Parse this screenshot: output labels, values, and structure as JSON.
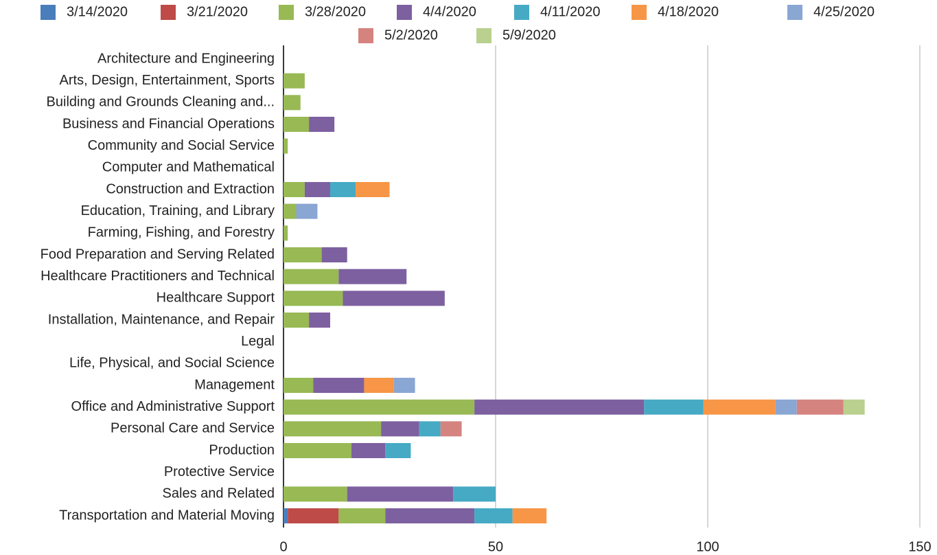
{
  "chart_data": {
    "type": "stacked_barh",
    "categories": [
      "Architecture and Engineering",
      "Arts, Design, Entertainment, Sports",
      "Building and Grounds Cleaning and...",
      "Business and Financial Operations",
      "Community and Social Service",
      "Computer and Mathematical",
      "Construction and Extraction",
      "Education, Training, and Library",
      "Farming, Fishing, and Forestry",
      "Food Preparation and Serving Related",
      "Healthcare Practitioners and Technical",
      "Healthcare Support",
      "Installation, Maintenance, and Repair",
      "Legal",
      "Life, Physical, and Social Science",
      "Management",
      "Office and Administrative Support",
      "Personal Care and Service",
      "Production",
      "Protective Service",
      "Sales and Related",
      "Transportation and Material Moving"
    ],
    "series": [
      {
        "name": "3/14/2020",
        "color": "#4a7ebb",
        "values": [
          0,
          0,
          0,
          0,
          0,
          0,
          0,
          0,
          0,
          0,
          0,
          0,
          0,
          0,
          0,
          0,
          0,
          0,
          0,
          0,
          0,
          1
        ]
      },
      {
        "name": "3/21/2020",
        "color": "#be4b48",
        "values": [
          0,
          0,
          0,
          0,
          0,
          0,
          0,
          0,
          0,
          0,
          0,
          0,
          0,
          0,
          0,
          0,
          0,
          0,
          0,
          0,
          0,
          12
        ]
      },
      {
        "name": "3/28/2020",
        "color": "#98b954",
        "values": [
          0,
          5,
          4,
          6,
          1,
          0,
          5,
          3,
          1,
          9,
          13,
          14,
          6,
          0,
          0,
          7,
          45,
          23,
          16,
          0,
          15,
          11
        ]
      },
      {
        "name": "4/4/2020",
        "color": "#7d60a0",
        "values": [
          0,
          0,
          0,
          6,
          0,
          0,
          6,
          0,
          0,
          6,
          16,
          24,
          5,
          0,
          0,
          12,
          40,
          9,
          8,
          0,
          25,
          21
        ]
      },
      {
        "name": "4/11/2020",
        "color": "#46aac5",
        "values": [
          0,
          0,
          0,
          0,
          0,
          0,
          6,
          0,
          0,
          0,
          0,
          0,
          0,
          0,
          0,
          0,
          14,
          5,
          6,
          0,
          10,
          9
        ]
      },
      {
        "name": "4/18/2020",
        "color": "#f79646",
        "values": [
          0,
          0,
          0,
          0,
          0,
          0,
          8,
          0,
          0,
          0,
          0,
          0,
          0,
          0,
          0,
          7,
          17,
          0,
          0,
          0,
          0,
          8
        ]
      },
      {
        "name": "4/25/2020",
        "color": "#8aa6d3",
        "values": [
          0,
          0,
          0,
          0,
          0,
          0,
          0,
          5,
          0,
          0,
          0,
          0,
          0,
          0,
          0,
          5,
          5,
          0,
          0,
          0,
          0,
          0
        ]
      },
      {
        "name": "5/2/2020",
        "color": "#d5837f",
        "values": [
          0,
          0,
          0,
          0,
          0,
          0,
          0,
          0,
          0,
          0,
          0,
          0,
          0,
          0,
          0,
          0,
          11,
          5,
          0,
          0,
          0,
          0
        ]
      },
      {
        "name": "5/9/2020",
        "color": "#b9d08e",
        "values": [
          0,
          0,
          0,
          0,
          0,
          0,
          0,
          0,
          0,
          0,
          0,
          0,
          0,
          0,
          0,
          0,
          5,
          0,
          0,
          0,
          0,
          0
        ]
      }
    ],
    "xlim": [
      0,
      150
    ],
    "xticks": [
      0,
      50,
      100,
      150
    ],
    "grid": true,
    "legend": "top"
  }
}
